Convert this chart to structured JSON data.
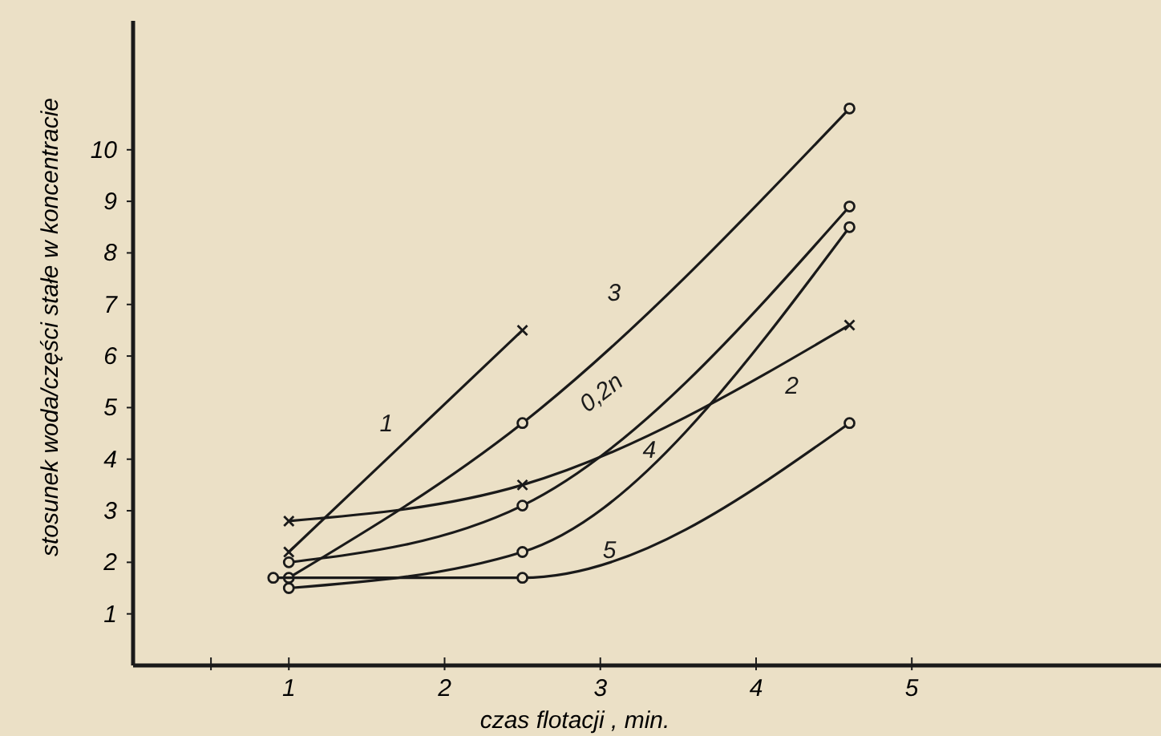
{
  "chart_data": {
    "type": "line",
    "xlabel": "czas flotacji , min.",
    "ylabel": "stosunek woda/części stałe w koncentracie",
    "xlim": [
      0,
      6.6
    ],
    "ylim": [
      0,
      12.5
    ],
    "xticks": [
      {
        "value": 0.5,
        "label": null
      },
      1,
      2,
      3,
      4,
      5
    ],
    "yticks": [
      1,
      2,
      3,
      4,
      5,
      6,
      7,
      8,
      9,
      10
    ],
    "line_style": "solid",
    "series": [
      {
        "name": "1",
        "color": "#1a1a1a",
        "marker": "cross",
        "x": [
          1,
          2.5
        ],
        "values": [
          2.2,
          6.5
        ]
      },
      {
        "name": "2",
        "color": "#1a1a1a",
        "marker": "cross",
        "x": [
          1,
          2.5,
          4.6
        ],
        "values": [
          2.8,
          3.5,
          6.6
        ]
      },
      {
        "name": "3",
        "color": "#1a1a1a",
        "marker": "circle",
        "x": [
          1,
          2.5,
          4.6
        ],
        "values": [
          1.7,
          4.7,
          10.8
        ]
      },
      {
        "name": "0,2n",
        "color": "#1a1a1a",
        "marker": "circle",
        "x": [
          1,
          2.5,
          4.6
        ],
        "values": [
          2.0,
          3.1,
          8.9
        ]
      },
      {
        "name": "4",
        "color": "#1a1a1a",
        "marker": "circle",
        "x": [
          1,
          2.5,
          4.6
        ],
        "values": [
          1.5,
          2.2,
          8.5
        ]
      },
      {
        "name": "5",
        "color": "#1a1a1a",
        "marker": "circle",
        "x": [
          0.9,
          2.5,
          4.6
        ],
        "values": [
          1.7,
          1.7,
          4.7
        ]
      }
    ]
  }
}
